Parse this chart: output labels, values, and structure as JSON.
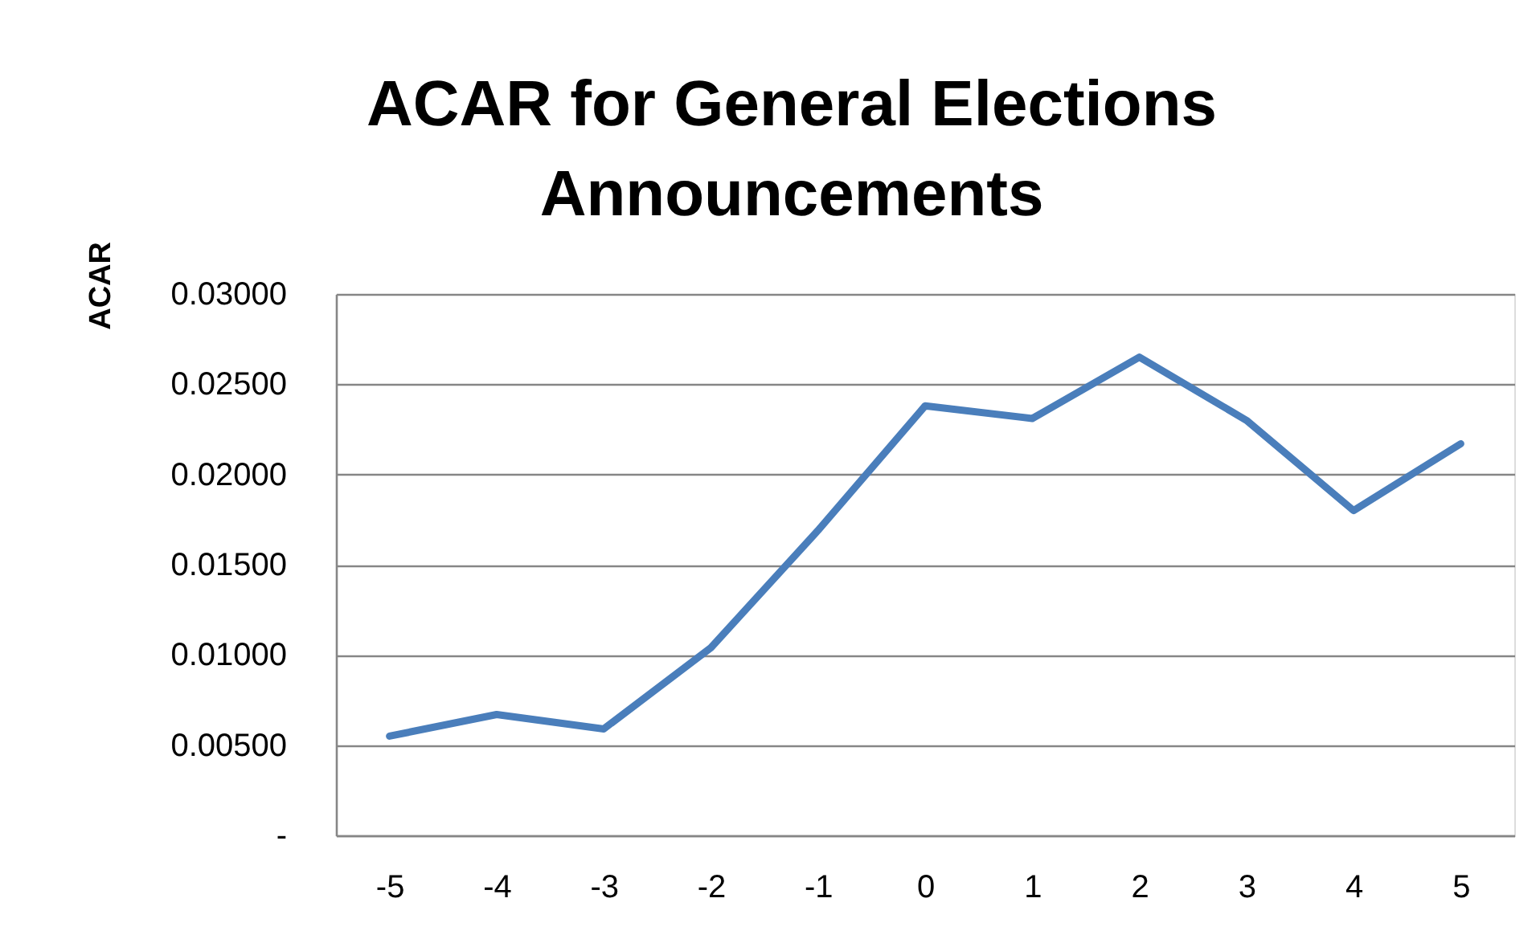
{
  "chart_data": {
    "type": "line",
    "title": "ACAR for General Elections Announcements",
    "ylabel": "ACAR",
    "categories": [
      "-5",
      "-4",
      "-3",
      "-2",
      "-1",
      "0",
      "1",
      "2",
      "3",
      "4",
      "5"
    ],
    "series": [
      {
        "color": "#4a7ebb",
        "values": [
          0.0055,
          0.0067,
          0.0059,
          0.0104,
          0.0169,
          0.0238,
          0.0231,
          0.0265,
          0.023,
          0.018,
          0.0217
        ]
      }
    ],
    "ylim": [
      0,
      0.03
    ],
    "yticks": [
      {
        "value": 0,
        "label": "-"
      },
      {
        "value": 0.005,
        "label": "0.00500"
      },
      {
        "value": 0.01,
        "label": "0.01000"
      },
      {
        "value": 0.015,
        "label": "0.01500"
      },
      {
        "value": 0.02,
        "label": "0.02000"
      },
      {
        "value": 0.025,
        "label": "0.02500"
      },
      {
        "value": 0.03,
        "label": "0.03000"
      }
    ],
    "grid": "y",
    "line_style": "solid"
  }
}
